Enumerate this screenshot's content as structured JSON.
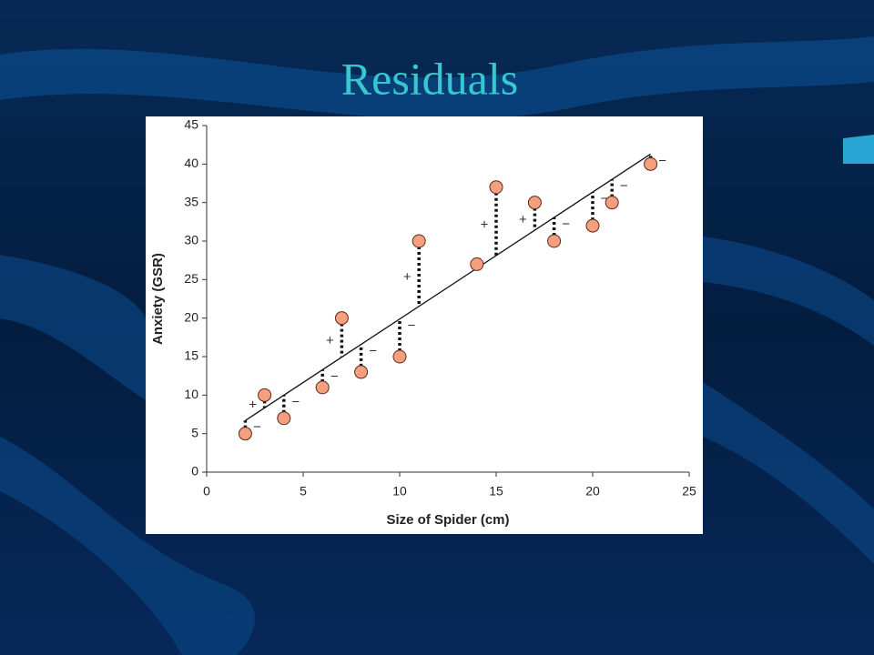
{
  "chart_data": {
    "type": "scatter",
    "title": "Residuals",
    "xlabel": "Size of Spider (cm)",
    "ylabel": "Anxiety (GSR)",
    "x": [
      2,
      3,
      4,
      6,
      7,
      8,
      10,
      11,
      14,
      15,
      17,
      18,
      20,
      21,
      23
    ],
    "values": [
      5,
      10,
      7,
      11,
      20,
      13,
      15,
      30,
      27,
      37,
      35,
      30,
      32,
      35,
      40
    ],
    "color": "#f4a07f",
    "residual_signs": [
      "−",
      "+",
      "−",
      "−",
      "+",
      "−",
      "−",
      "+",
      null,
      "+",
      "+",
      "−",
      "−",
      "−",
      "−"
    ],
    "fit_line": {
      "x": [
        2,
        23
      ],
      "y": [
        6.7,
        41.3
      ]
    },
    "xlim": [
      0,
      25
    ],
    "xticks": [
      0,
      5,
      10,
      15,
      20,
      25
    ],
    "ylim": [
      0,
      45
    ],
    "yticks": [
      0,
      5,
      10,
      15,
      20,
      25,
      30,
      35,
      40,
      45
    ]
  }
}
